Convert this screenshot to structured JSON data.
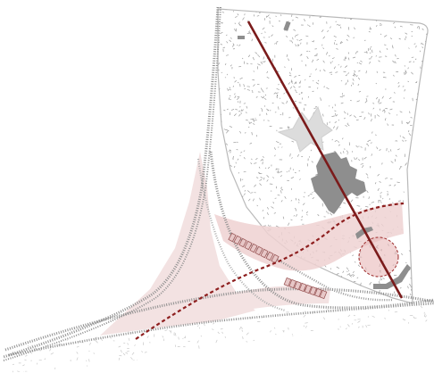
{
  "map": {
    "colors": {
      "background": "#ffffff",
      "stipple": "#9b9b9b",
      "stipple_light": "#c8c8c8",
      "outline": "#b9b9b9",
      "rail": "#8f8f8f",
      "rail_light": "#b0b0b0",
      "pink_zone": "#f1dede",
      "pink_zone_alt": "#efd2d2",
      "building_dark": "#8e8e8e",
      "building_light": "#dcdcdc",
      "route_solid": "#7b1b1b",
      "route_dashed": "#8e1f1f",
      "circle_fill": "#e8b8b8",
      "circle_stroke": "#9c2a2a",
      "platform_fill": "#e7c7c7",
      "platform_stroke": "#9c5a5a"
    },
    "icons": {
      "star_marker": "star-shaped-fortification",
      "building": "building-cluster",
      "platform": "railway-platform"
    }
  }
}
